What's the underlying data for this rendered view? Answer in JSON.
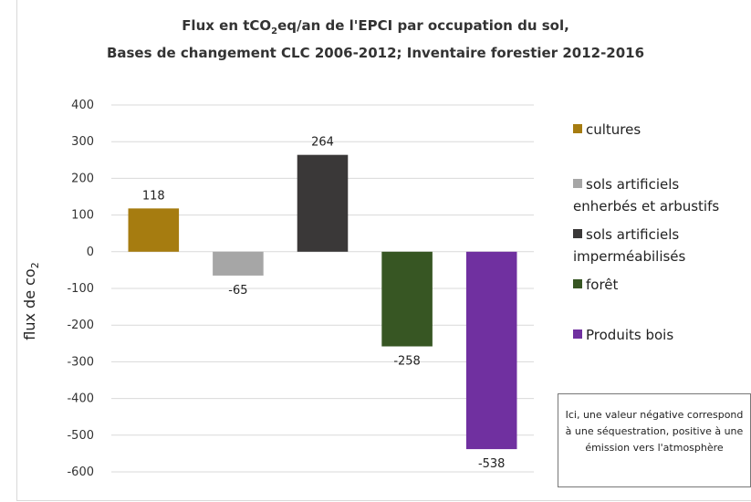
{
  "chart_data": {
    "type": "bar",
    "title_line1_pre": "Flux en tCO",
    "title_line1_sub": "2",
    "title_line1_post": "eq/an de l'EPCI par occupation du sol,",
    "title_line2": "Bases de changement CLC 2006-2012; Inventaire forestier 2012-2016",
    "ylabel_pre": "flux de co",
    "ylabel_sub": "2",
    "ylim": [
      -600,
      400
    ],
    "yticks": [
      400,
      300,
      200,
      100,
      0,
      -100,
      -200,
      -300,
      -400,
      -500,
      -600
    ],
    "grid": true,
    "legend_position": "right",
    "series": [
      {
        "name": "cultures",
        "name_lines": [
          "cultures"
        ],
        "value": 118,
        "color": "#a67c10"
      },
      {
        "name": "sols artificiels enherbés et arbustifs",
        "name_lines": [
          "sols artificiels",
          "enherbés et arbustifs"
        ],
        "value": -65,
        "color": "#a6a6a6"
      },
      {
        "name": "sols artificiels imperméabilisés",
        "name_lines": [
          "sols artificiels",
          "imperméabilisés"
        ],
        "value": 264,
        "color": "#3a3838"
      },
      {
        "name": "forêt",
        "name_lines": [
          "forêt"
        ],
        "value": -258,
        "color": "#375623"
      },
      {
        "name": "Produits bois",
        "name_lines": [
          "Produits bois"
        ],
        "value": -538,
        "color": "#7030a0"
      }
    ],
    "note": "Ici, une valeur négative correspond à une séquestration, positive à une émission vers l'atmosphère"
  }
}
